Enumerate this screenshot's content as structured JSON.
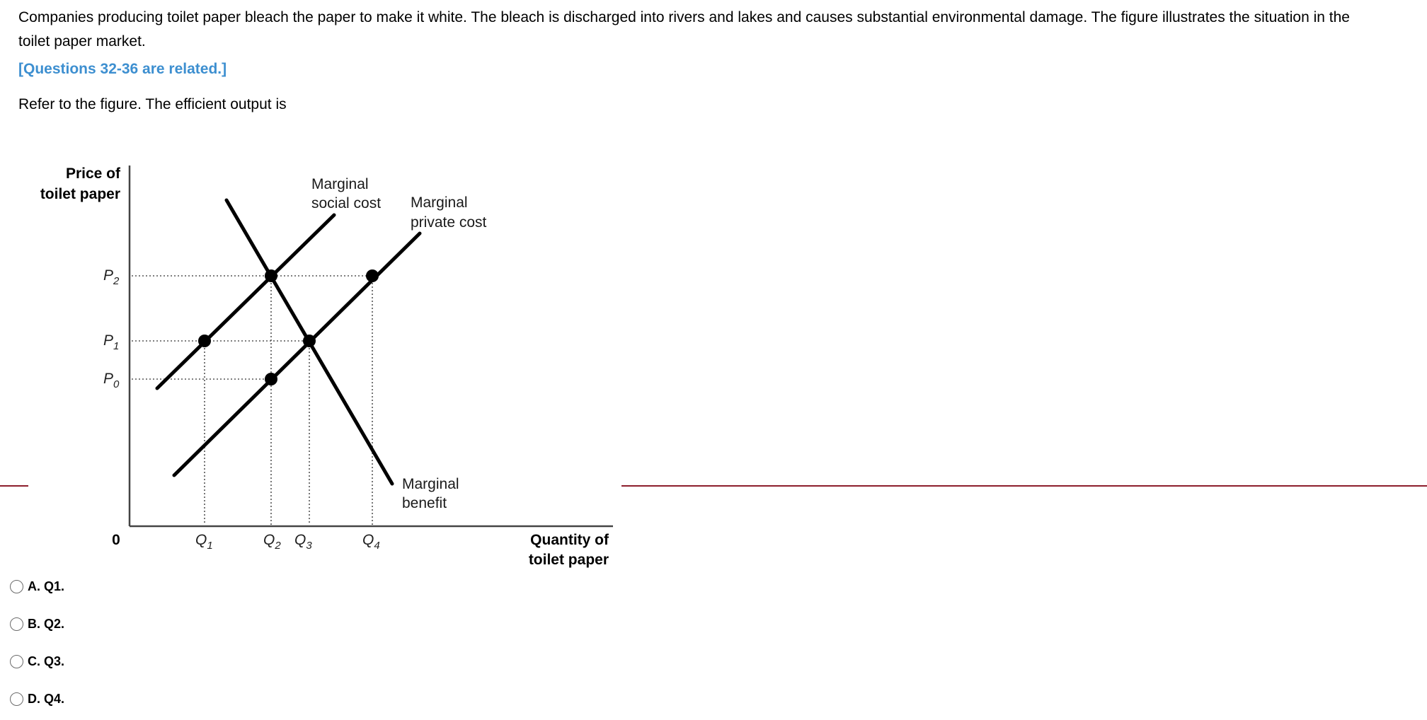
{
  "question": {
    "stem": "Companies producing toilet paper bleach the paper to make it white. The bleach is discharged into rivers and lakes and causes substantial environmental damage. The figure illustrates the situation in the toilet paper market.",
    "related_note": "[Questions 32-36 are related.]",
    "prompt": "Refer to the figure. The efficient output is"
  },
  "figure": {
    "y_axis_label": [
      "Price of",
      "toilet paper"
    ],
    "x_axis_label": [
      "Quantity of",
      "toilet paper"
    ],
    "origin_label": "0",
    "price_ticks": [
      {
        "main": "P",
        "sub": "2"
      },
      {
        "main": "P",
        "sub": "1"
      },
      {
        "main": "P",
        "sub": "0"
      }
    ],
    "quantity_ticks": [
      {
        "main": "Q",
        "sub": "1"
      },
      {
        "main": "Q",
        "sub": "2"
      },
      {
        "main": "Q",
        "sub": "3"
      },
      {
        "main": "Q",
        "sub": "4"
      }
    ],
    "curve_labels": {
      "msc": [
        "Marginal",
        "social cost"
      ],
      "mpc": [
        "Marginal",
        "private cost"
      ],
      "mb": [
        "Marginal",
        "benefit"
      ]
    }
  },
  "chart_data": {
    "type": "line",
    "xlabel": "Quantity of toilet paper",
    "ylabel": "Price of toilet paper",
    "x_ticks": [
      "Q1",
      "Q2",
      "Q3",
      "Q4"
    ],
    "y_ticks": [
      "P0",
      "P1",
      "P2"
    ],
    "series": [
      {
        "name": "Marginal social cost",
        "points": [
          [
            "Q1",
            "P1"
          ],
          [
            "Q2",
            "P2"
          ]
        ]
      },
      {
        "name": "Marginal private cost",
        "points": [
          [
            "Q2",
            "P0"
          ],
          [
            "Q3",
            "P1"
          ],
          [
            "Q4",
            "P2"
          ]
        ]
      },
      {
        "name": "Marginal benefit",
        "points": [
          [
            "Q2",
            "P2"
          ],
          [
            "Q3",
            "P1"
          ]
        ]
      }
    ]
  },
  "choices": [
    {
      "label": "A. Q1."
    },
    {
      "label": "B. Q2."
    },
    {
      "label": "C. Q3."
    },
    {
      "label": "D. Q4."
    }
  ]
}
